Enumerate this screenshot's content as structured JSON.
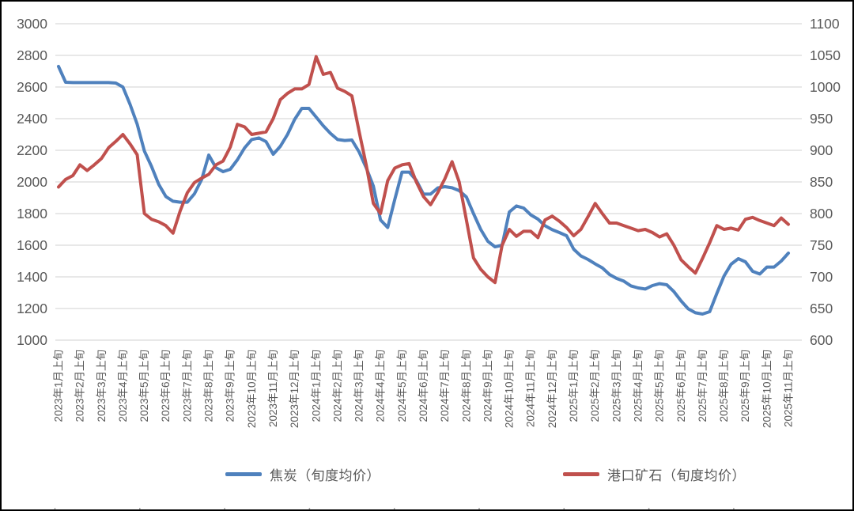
{
  "chart_data": {
    "type": "line",
    "title": "",
    "grid": true,
    "legend_position": "bottom",
    "x_label_note": "labels are monthly (上旬 = first ten-day period); data sampled every ten-day period (旬), 3 points per month",
    "x_labels": [
      "2023年1月上旬",
      "2023年2月上旬",
      "2023年3月上旬",
      "2023年4月上旬",
      "2023年5月上旬",
      "2023年6月上旬",
      "2023年7月上旬",
      "2023年8月上旬",
      "2023年9月上旬",
      "2023年10月上旬",
      "2023年11月上旬",
      "2023年12月上旬",
      "2024年1月上旬",
      "2024年2月上旬",
      "2024年3月上旬",
      "2024年4月上旬",
      "2024年5月上旬",
      "2024年6月上旬",
      "2024年7月上旬",
      "2024年8月上旬",
      "2024年9月上旬",
      "2024年10月上旬",
      "2024年11月上旬",
      "2024年12月上旬",
      "2025年1月上旬",
      "2025年2月上旬",
      "2025年3月上旬",
      "2025年4月上旬",
      "2025年5月上旬",
      "2025年6月上旬",
      "2025年7月上旬",
      "2025年8月上旬",
      "2025年9月上旬",
      "2025年10月上旬",
      "2025年11月上旬"
    ],
    "points_per_month": 3,
    "left_axis": {
      "min": 1000,
      "max": 3000,
      "step": 200,
      "ticks": [
        "3000",
        "2800",
        "2600",
        "2400",
        "2200",
        "2000",
        "1800",
        "1600",
        "1400",
        "1200",
        "1000"
      ]
    },
    "right_axis": {
      "min": 600,
      "max": 1100,
      "step": 50,
      "ticks": [
        "1100",
        "1050",
        "1000",
        "950",
        "900",
        "850",
        "800",
        "750",
        "700",
        "650",
        "600"
      ]
    },
    "series": [
      {
        "name": "焦炭（旬度均价）",
        "axis": "left",
        "color": "#4F81BD",
        "values": [
          2730,
          2630,
          2628,
          2628,
          2628,
          2628,
          2628,
          2628,
          2625,
          2600,
          2490,
          2365,
          2195,
          2098,
          1985,
          1908,
          1878,
          1872,
          1872,
          1925,
          2015,
          2170,
          2090,
          2065,
          2080,
          2140,
          2215,
          2268,
          2278,
          2255,
          2175,
          2225,
          2300,
          2395,
          2465,
          2465,
          2410,
          2355,
          2307,
          2268,
          2262,
          2265,
          2190,
          2090,
          1973,
          1760,
          1712,
          1890,
          2062,
          2062,
          2010,
          1923,
          1923,
          1962,
          1970,
          1963,
          1945,
          1905,
          1800,
          1700,
          1625,
          1590,
          1600,
          1810,
          1848,
          1835,
          1792,
          1765,
          1723,
          1698,
          1680,
          1660,
          1575,
          1532,
          1510,
          1482,
          1457,
          1415,
          1390,
          1373,
          1343,
          1330,
          1323,
          1345,
          1357,
          1350,
          1307,
          1248,
          1198,
          1173,
          1165,
          1180,
          1295,
          1405,
          1480,
          1515,
          1495,
          1435,
          1418,
          1462,
          1462,
          1500,
          1550
        ]
      },
      {
        "name": "港口矿石（旬度均价）",
        "axis": "right",
        "color": "#C0504D",
        "values": [
          842,
          854,
          860,
          877,
          868,
          877,
          887,
          904,
          914,
          925,
          910,
          893,
          800,
          791,
          787,
          781,
          769,
          804,
          833,
          849,
          856,
          862,
          877,
          883,
          905,
          941,
          937,
          925,
          927,
          929,
          950,
          980,
          990,
          997,
          997,
          1004,
          1048,
          1020,
          1023,
          998,
          993,
          986,
          930,
          877,
          816,
          800,
          852,
          872,
          877,
          879,
          850,
          827,
          814,
          833,
          855,
          882,
          850,
          790,
          730,
          712,
          700,
          691,
          750,
          775,
          764,
          772,
          772,
          762,
          790,
          796,
          788,
          778,
          765,
          775,
          795,
          816,
          800,
          785,
          785,
          781,
          777,
          773,
          775,
          770,
          763,
          768,
          750,
          727,
          716,
          706,
          729,
          754,
          781,
          775,
          777,
          774,
          791,
          794,
          789,
          785,
          781,
          793,
          783
        ]
      }
    ]
  },
  "colors": {
    "grid": "#D9D9D9",
    "axis_text": "#595959",
    "frame": "#000000",
    "background": "#FFFFFF",
    "bottom_ticks": "#A6A6A6"
  },
  "legend": {
    "coke_label": "焦炭（旬度均价）",
    "ore_label": "港口矿石（旬度均价）"
  }
}
